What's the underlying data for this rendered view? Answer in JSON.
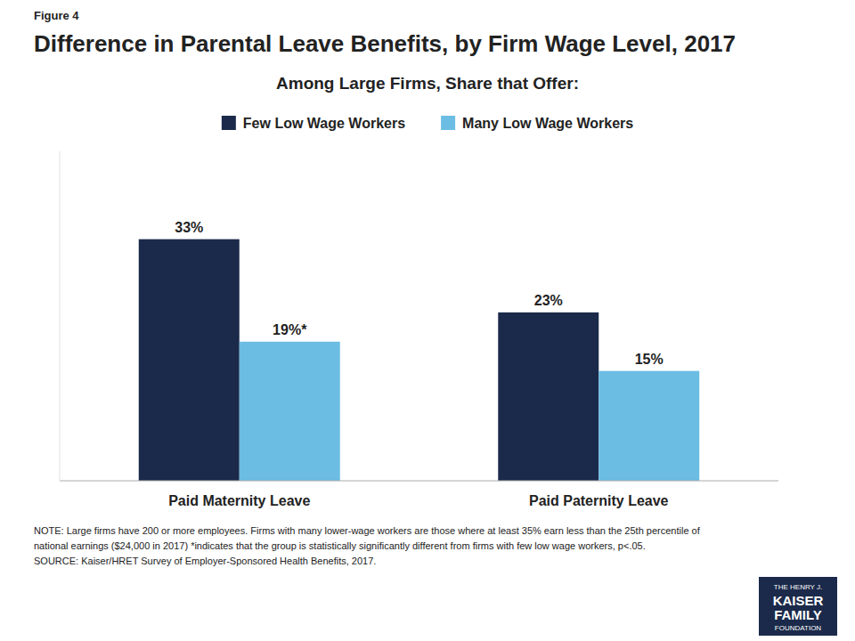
{
  "chart_data": {
    "type": "bar",
    "title": "Difference in Parental Leave Benefits, by Firm Wage Level, 2017",
    "subtitle": "Among Large Firms, Share that Offer:",
    "annotations": [
      "Figure 4",
      "NOTE: Large firms have 200 or more employees.  Firms with many lower-wage workers are those where at least 35% earn less than the 25th percentile of",
      "national earnings ($24,000 in 2017) *indicates that the group is statistically significantly different from firms with few low wage workers, p<.05.",
      "SOURCE: Kaiser/HRET Survey of Employer-Sponsored  Health Benefits, 2017.",
      "THE HENRY J.",
      "KAISER",
      "FAMILY",
      "FOUNDATION"
    ],
    "categories": [
      "Paid Maternity Leave",
      "Paid Paternity Leave"
    ],
    "series": [
      {
        "name": "Few Low Wage Workers",
        "color": "#1B2A4A",
        "values": [
          33,
          23
        ],
        "value_labels": [
          "33%",
          "23%"
        ]
      },
      {
        "name": "Many Low Wage Workers",
        "color": "#6BBDE3",
        "values": [
          19,
          15
        ],
        "value_labels": [
          "19%*",
          "15%"
        ]
      }
    ],
    "ylim": [
      0,
      45
    ],
    "legend": "top",
    "grid": false,
    "data_labels": true,
    "tick_labels": "x"
  }
}
